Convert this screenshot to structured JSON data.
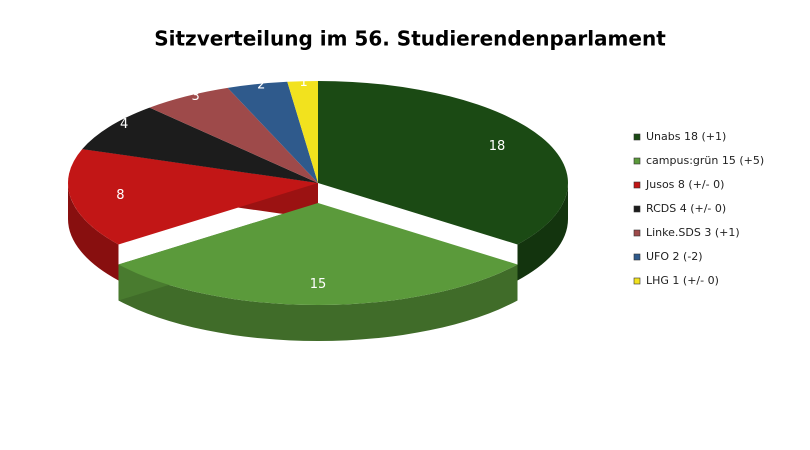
{
  "chart_data": {
    "type": "pie",
    "title": "Sitzverteilung im 56. Studierendenparlament",
    "categories": [
      "Unabs 18 (+1)",
      "campus:grün 15 (+5)",
      "Jusos 8 (+/- 0)",
      "RCDS 4 (+/- 0)",
      "Linke.SDS 3 (+1)",
      "UFO 2 (-2)",
      "LHG 1 (+/- 0)"
    ],
    "values": [
      18,
      15,
      8,
      4,
      3,
      2,
      1
    ],
    "colors": [
      "#1b4a14",
      "#5b9a3b",
      "#c21616",
      "#1c1c1c",
      "#9e4a4a",
      "#2f5a8c",
      "#f2e21e"
    ],
    "legend": "right"
  }
}
